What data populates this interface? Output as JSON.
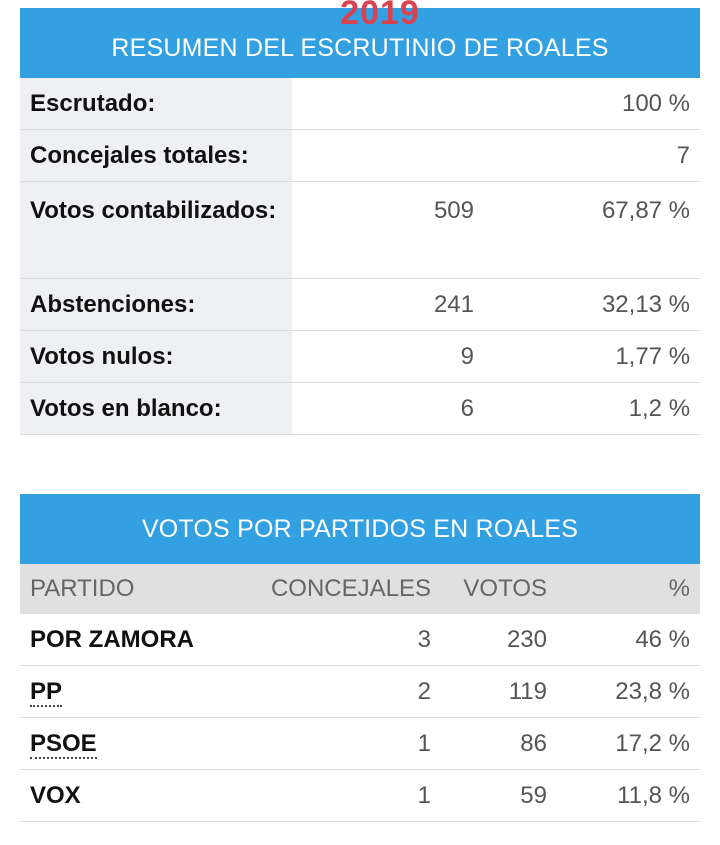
{
  "year": "2019",
  "summary": {
    "title": "RESUMEN DEL ESCRUTINIO DE ROALES",
    "rows": [
      {
        "label": "Escrutado:",
        "count": "",
        "pct": "100 %"
      },
      {
        "label": "Concejales totales:",
        "count": "",
        "pct": "7"
      },
      {
        "label": "Votos contabilizados:",
        "count": "509",
        "pct": "67,87 %"
      },
      {
        "label": "Abstenciones:",
        "count": "241",
        "pct": "32,13 %"
      },
      {
        "label": "Votos nulos:",
        "count": "9",
        "pct": "1,77 %"
      },
      {
        "label": "Votos en blanco:",
        "count": "6",
        "pct": "1,2 %"
      }
    ]
  },
  "parties": {
    "title": "VOTOS POR PARTIDOS EN ROALES",
    "headers": {
      "party": "PARTIDO",
      "seats": "CONCEJALES",
      "votes": "VOTOS",
      "pct": "%"
    },
    "rows": [
      {
        "party": "POR ZAMORA",
        "seats": "3",
        "votes": "230",
        "pct": "46 %"
      },
      {
        "party": "PP",
        "seats": "2",
        "votes": "119",
        "pct": "23,8 %"
      },
      {
        "party": "PSOE",
        "seats": "1",
        "votes": "86",
        "pct": "17,2 %"
      },
      {
        "party": "VOX",
        "seats": "1",
        "votes": "59",
        "pct": "11,8 %"
      }
    ]
  }
}
